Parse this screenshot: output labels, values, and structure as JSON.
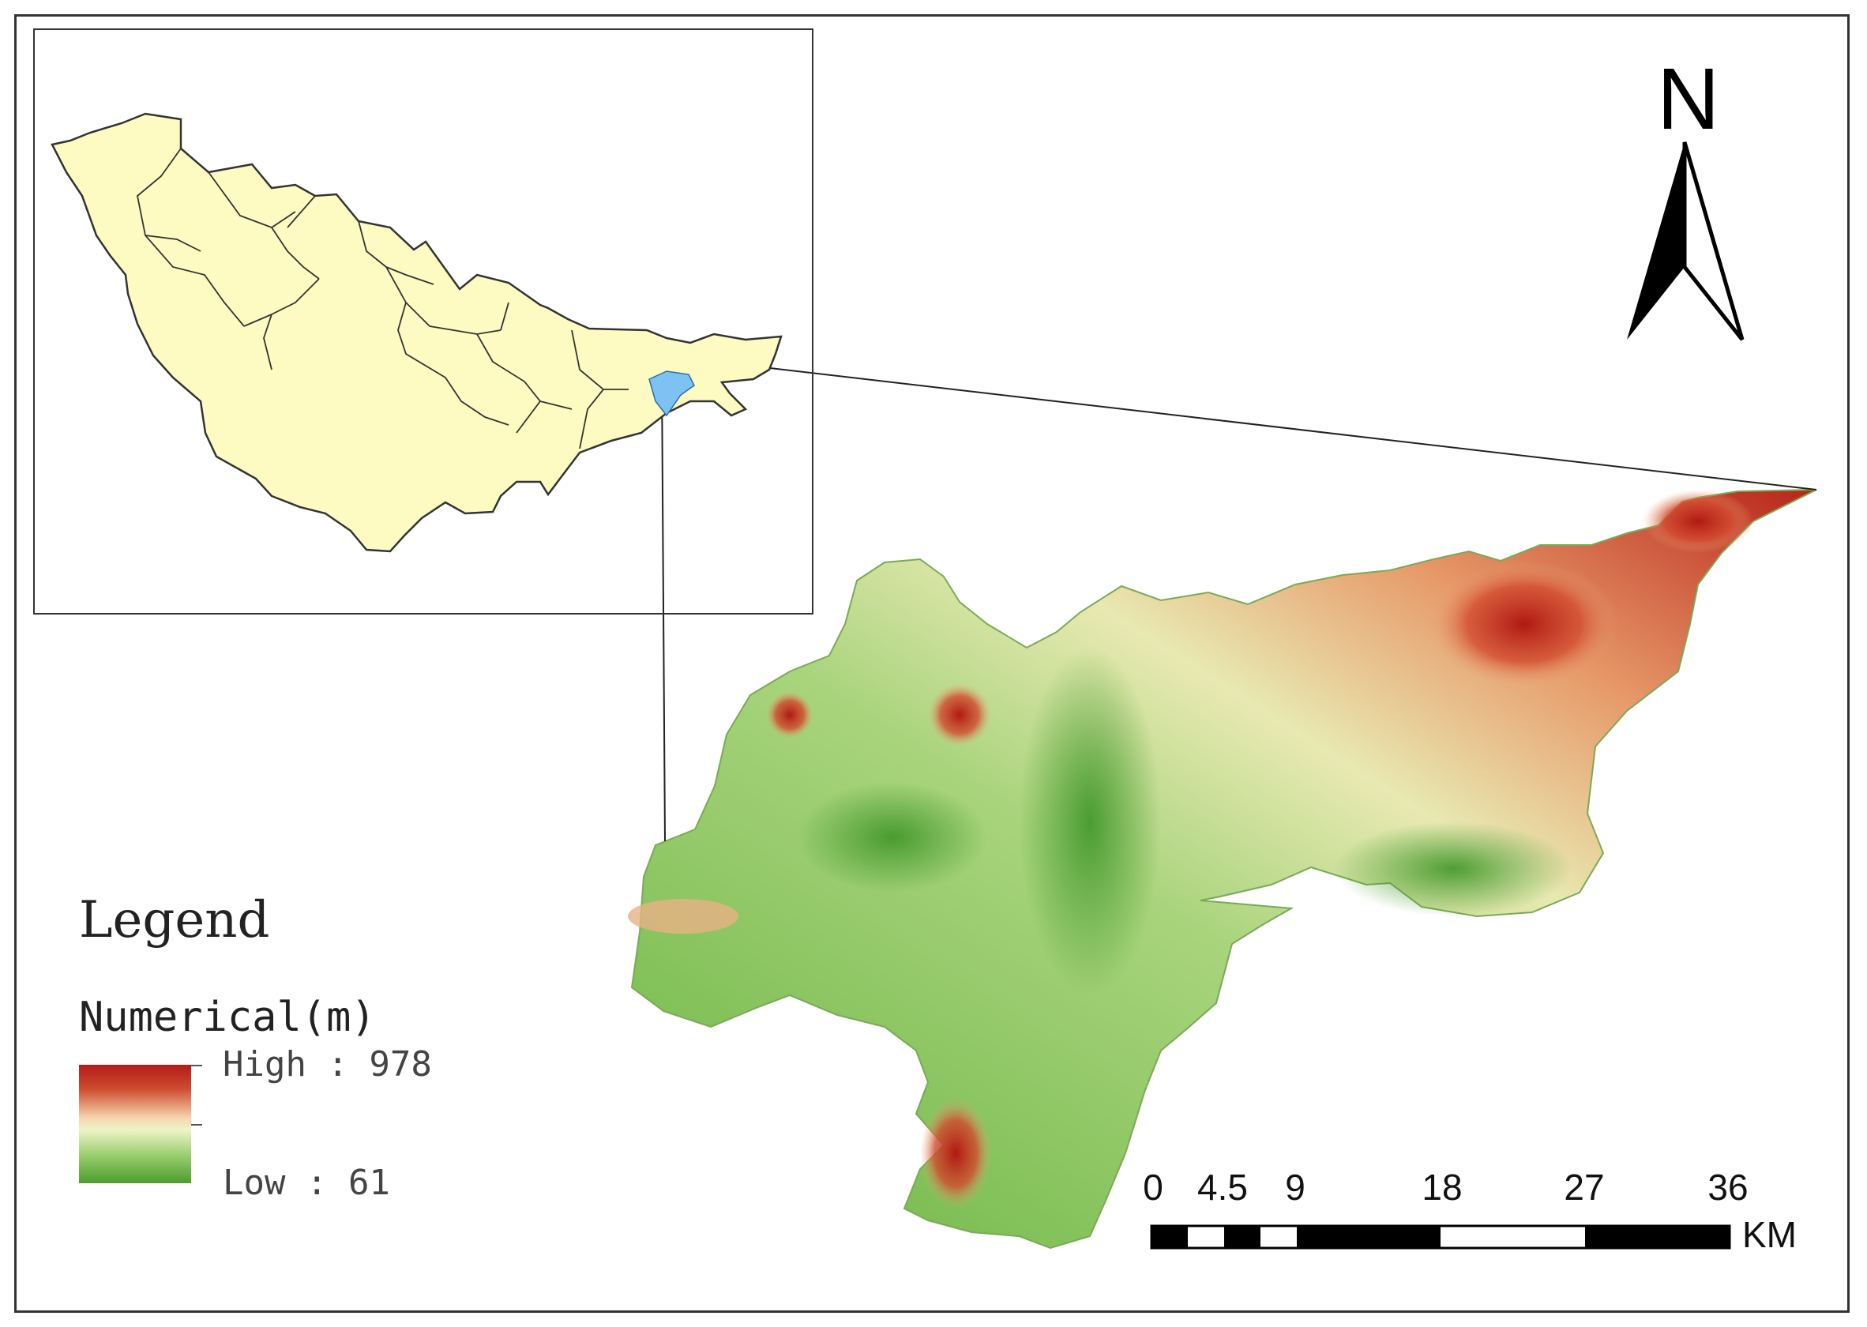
{
  "legend": {
    "title": "Legend",
    "field": "Numerical(m)",
    "high_label": "High : 978",
    "low_label": "Low : 61",
    "high_value": 978,
    "low_value": 61,
    "colors": {
      "high": "#b51b17",
      "mid": "#f6d5ac",
      "low": "#4c9e2b"
    }
  },
  "north_arrow": {
    "label": "N"
  },
  "scale_bar": {
    "ticks": [
      "0",
      "4.5",
      "9",
      "18",
      "27",
      "36"
    ],
    "unit": "KM"
  },
  "inset": {
    "region_fill": "#fdfbc1",
    "highlight_fill": "#7ec2f4"
  }
}
